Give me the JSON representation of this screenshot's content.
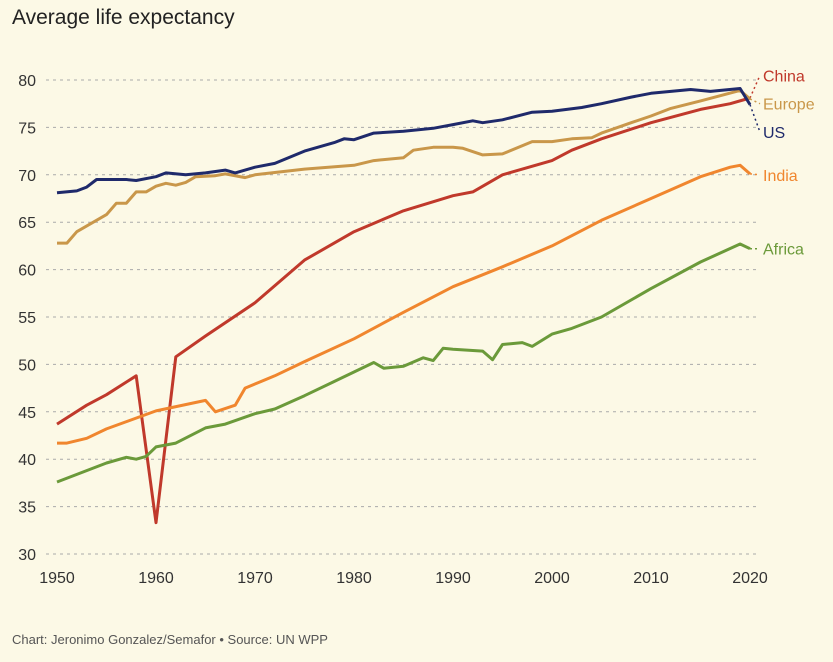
{
  "chart_data": {
    "type": "line",
    "title": "Average life expectancy",
    "source": "Chart: Jeronimo Gonzalez/Semafor • Source: UN WPP",
    "xlabel": "",
    "ylabel": "",
    "xlim": [
      1950,
      2020
    ],
    "ylim": [
      30,
      80
    ],
    "xticks": [
      1950,
      1960,
      1970,
      1980,
      1990,
      2000,
      2010,
      2020
    ],
    "yticks": [
      30,
      35,
      40,
      45,
      50,
      55,
      60,
      65,
      70,
      75,
      80
    ],
    "grid": "horizontal dashed",
    "legend": "direct labels at right",
    "series": [
      {
        "name": "China",
        "color": "#c0392b",
        "label_value": 80.5,
        "points": [
          [
            1950,
            43.7
          ],
          [
            1953,
            45.7
          ],
          [
            1955,
            46.8
          ],
          [
            1958,
            48.8
          ],
          [
            1960,
            33.3
          ],
          [
            1962,
            50.8
          ],
          [
            1965,
            53
          ],
          [
            1970,
            56.5
          ],
          [
            1975,
            61
          ],
          [
            1980,
            64
          ],
          [
            1985,
            66.2
          ],
          [
            1990,
            67.8
          ],
          [
            1992,
            68.2
          ],
          [
            1995,
            70
          ],
          [
            2000,
            71.5
          ],
          [
            2002,
            72.6
          ],
          [
            2005,
            73.8
          ],
          [
            2010,
            75.5
          ],
          [
            2015,
            76.9
          ],
          [
            2018,
            77.5
          ],
          [
            2020,
            78.1
          ]
        ]
      },
      {
        "name": "Europe",
        "color": "#c9974a",
        "label_value": 77.5,
        "points": [
          [
            1950,
            62.8
          ],
          [
            1951,
            62.8
          ],
          [
            1952,
            64
          ],
          [
            1955,
            65.8
          ],
          [
            1956,
            67
          ],
          [
            1957,
            67
          ],
          [
            1958,
            68.2
          ],
          [
            1959,
            68.2
          ],
          [
            1960,
            68.8
          ],
          [
            1961,
            69.1
          ],
          [
            1962,
            68.9
          ],
          [
            1963,
            69.2
          ],
          [
            1964,
            69.8
          ],
          [
            1966,
            69.9
          ],
          [
            1967,
            70.1
          ],
          [
            1969,
            69.7
          ],
          [
            1970,
            70
          ],
          [
            1975,
            70.6
          ],
          [
            1980,
            71
          ],
          [
            1982,
            71.5
          ],
          [
            1985,
            71.8
          ],
          [
            1986,
            72.6
          ],
          [
            1988,
            72.9
          ],
          [
            1990,
            72.9
          ],
          [
            1991,
            72.8
          ],
          [
            1993,
            72.1
          ],
          [
            1995,
            72.2
          ],
          [
            1998,
            73.5
          ],
          [
            2000,
            73.5
          ],
          [
            2002,
            73.8
          ],
          [
            2004,
            73.9
          ],
          [
            2005,
            74.4
          ],
          [
            2008,
            75.5
          ],
          [
            2010,
            76.2
          ],
          [
            2012,
            77
          ],
          [
            2015,
            77.8
          ],
          [
            2019,
            78.9
          ],
          [
            2020,
            78
          ]
        ]
      },
      {
        "name": "US",
        "color": "#1f2a6b",
        "label_value": 74.5,
        "points": [
          [
            1950,
            68.1
          ],
          [
            1952,
            68.3
          ],
          [
            1953,
            68.7
          ],
          [
            1954,
            69.5
          ],
          [
            1957,
            69.5
          ],
          [
            1958,
            69.4
          ],
          [
            1960,
            69.8
          ],
          [
            1961,
            70.2
          ],
          [
            1963,
            70
          ],
          [
            1965,
            70.2
          ],
          [
            1967,
            70.5
          ],
          [
            1968,
            70.2
          ],
          [
            1970,
            70.8
          ],
          [
            1972,
            71.2
          ],
          [
            1975,
            72.5
          ],
          [
            1978,
            73.4
          ],
          [
            1979,
            73.8
          ],
          [
            1980,
            73.7
          ],
          [
            1982,
            74.4
          ],
          [
            1985,
            74.6
          ],
          [
            1988,
            74.9
          ],
          [
            1990,
            75.3
          ],
          [
            1992,
            75.7
          ],
          [
            1993,
            75.5
          ],
          [
            1995,
            75.8
          ],
          [
            1998,
            76.6
          ],
          [
            2000,
            76.7
          ],
          [
            2003,
            77.1
          ],
          [
            2005,
            77.5
          ],
          [
            2008,
            78.2
          ],
          [
            2010,
            78.6
          ],
          [
            2014,
            79
          ],
          [
            2016,
            78.8
          ],
          [
            2019,
            79.1
          ],
          [
            2020,
            77.4
          ]
        ]
      },
      {
        "name": "India",
        "color": "#f0862e",
        "label_value": 70,
        "points": [
          [
            1950,
            41.7
          ],
          [
            1951,
            41.7
          ],
          [
            1953,
            42.2
          ],
          [
            1955,
            43.2
          ],
          [
            1960,
            45.1
          ],
          [
            1965,
            46.2
          ],
          [
            1966,
            45
          ],
          [
            1968,
            45.7
          ],
          [
            1969,
            47.5
          ],
          [
            1972,
            48.8
          ],
          [
            1975,
            50.3
          ],
          [
            1980,
            52.7
          ],
          [
            1985,
            55.5
          ],
          [
            1990,
            58.2
          ],
          [
            1995,
            60.3
          ],
          [
            2000,
            62.5
          ],
          [
            2005,
            65.2
          ],
          [
            2010,
            67.5
          ],
          [
            2015,
            69.8
          ],
          [
            2018,
            70.8
          ],
          [
            2019,
            71
          ],
          [
            2020,
            70.1
          ]
        ]
      },
      {
        "name": "Africa",
        "color": "#6b9a3a",
        "label_value": 62.2,
        "points": [
          [
            1950,
            37.6
          ],
          [
            1955,
            39.6
          ],
          [
            1957,
            40.2
          ],
          [
            1958,
            40
          ],
          [
            1959,
            40.3
          ],
          [
            1960,
            41.3
          ],
          [
            1962,
            41.7
          ],
          [
            1965,
            43.3
          ],
          [
            1967,
            43.7
          ],
          [
            1970,
            44.8
          ],
          [
            1972,
            45.3
          ],
          [
            1975,
            46.7
          ],
          [
            1978,
            48.2
          ],
          [
            1980,
            49.2
          ],
          [
            1982,
            50.2
          ],
          [
            1983,
            49.6
          ],
          [
            1985,
            49.8
          ],
          [
            1987,
            50.7
          ],
          [
            1988,
            50.4
          ],
          [
            1989,
            51.7
          ],
          [
            1990,
            51.6
          ],
          [
            1993,
            51.4
          ],
          [
            1994,
            50.5
          ],
          [
            1995,
            52.1
          ],
          [
            1997,
            52.3
          ],
          [
            1998,
            51.9
          ],
          [
            2000,
            53.2
          ],
          [
            2002,
            53.8
          ],
          [
            2005,
            55
          ],
          [
            2010,
            58
          ],
          [
            2015,
            60.8
          ],
          [
            2019,
            62.7
          ],
          [
            2020,
            62.2
          ]
        ]
      }
    ]
  }
}
